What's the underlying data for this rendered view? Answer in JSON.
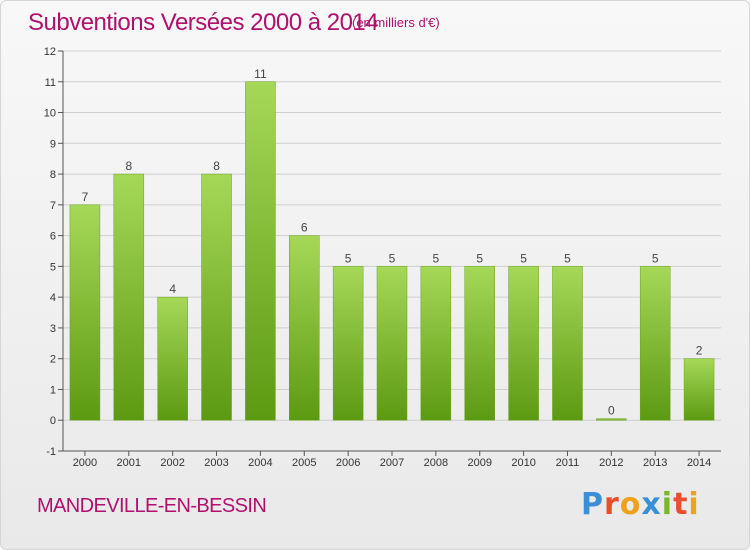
{
  "header": {
    "title": "Subventions Versées 2000 à 2014",
    "unit_note": "(en milliers d'€)"
  },
  "footer": {
    "commune": "MANDEVILLE-EN-BESSIN",
    "brand": "Proxiti"
  },
  "colors": {
    "title": "#b0106e",
    "bar_light": "#9fd24f",
    "bar_dark": "#5c9a12",
    "gridline": "#cfcfcf"
  },
  "chart_data": {
    "type": "bar",
    "categories": [
      "2000",
      "2001",
      "2002",
      "2003",
      "2004",
      "2005",
      "2006",
      "2007",
      "2008",
      "2009",
      "2010",
      "2011",
      "2012",
      "2013",
      "2014"
    ],
    "values": [
      7,
      8,
      4,
      8,
      11,
      6,
      5,
      5,
      5,
      5,
      5,
      5,
      0,
      5,
      2
    ],
    "data_labels": [
      "7",
      "8",
      "4",
      "8",
      "11",
      "6",
      "5",
      "5",
      "5",
      "5",
      "5",
      "5",
      "0",
      "5",
      "2"
    ],
    "title": "Subventions Versées 2000 à 2014",
    "xlabel": "",
    "ylabel": "",
    "ylim": [
      -1,
      12
    ],
    "y_ticks": [
      -1,
      0,
      1,
      2,
      3,
      4,
      5,
      6,
      7,
      8,
      9,
      10,
      11,
      12
    ],
    "grid": "horizontal",
    "legend": "none"
  }
}
